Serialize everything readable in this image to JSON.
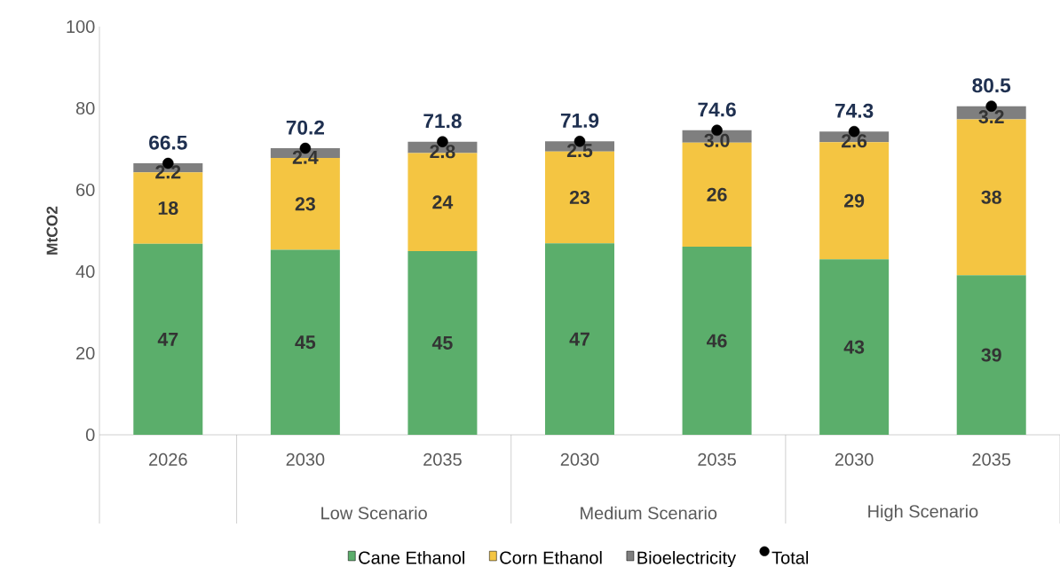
{
  "chart_data": {
    "type": "bar",
    "stacked": true,
    "ylabel": "MtCO2",
    "categories": [
      "2026",
      "2030",
      "2035",
      "2030",
      "2035",
      "2030",
      "2035"
    ],
    "ylim": [
      0,
      100
    ],
    "yticks": [
      0,
      20,
      40,
      60,
      80,
      100
    ],
    "legend": "bottom",
    "annotations": [
      "Low Scenario",
      "Medium Scenario",
      "High Scenario"
    ],
    "series": [
      {
        "name": "Cane Ethanol",
        "color": "#5bae6b",
        "values": [
          46.8,
          45.3,
          45.0,
          46.9,
          46.1,
          43.0,
          39.1
        ],
        "value_labels": [
          "47",
          "45",
          "45",
          "47",
          "46",
          "43",
          "39"
        ]
      },
      {
        "name": "Corn Ethanol",
        "color": "#f4c542",
        "values": [
          17.5,
          22.5,
          24.0,
          22.5,
          25.5,
          28.7,
          38.2
        ],
        "value_labels": [
          "18",
          "23",
          "24",
          "23",
          "26",
          "29",
          "38"
        ]
      },
      {
        "name": "Bioelectricity",
        "color": "#7f7f7f",
        "values": [
          2.2,
          2.4,
          2.8,
          2.5,
          3.0,
          2.6,
          3.2
        ],
        "value_labels": [
          "2.2",
          "2.4",
          "2.8",
          "2.5",
          "3.0",
          "2.6",
          "3.2"
        ]
      },
      {
        "name": "Total",
        "type": "scatter",
        "color": "#000000",
        "values": [
          66.5,
          70.2,
          71.8,
          71.9,
          74.6,
          74.3,
          80.5
        ],
        "value_labels": [
          "66.5",
          "70.2",
          "71.8",
          "71.9",
          "74.6",
          "74.3",
          "80.5"
        ]
      }
    ]
  }
}
